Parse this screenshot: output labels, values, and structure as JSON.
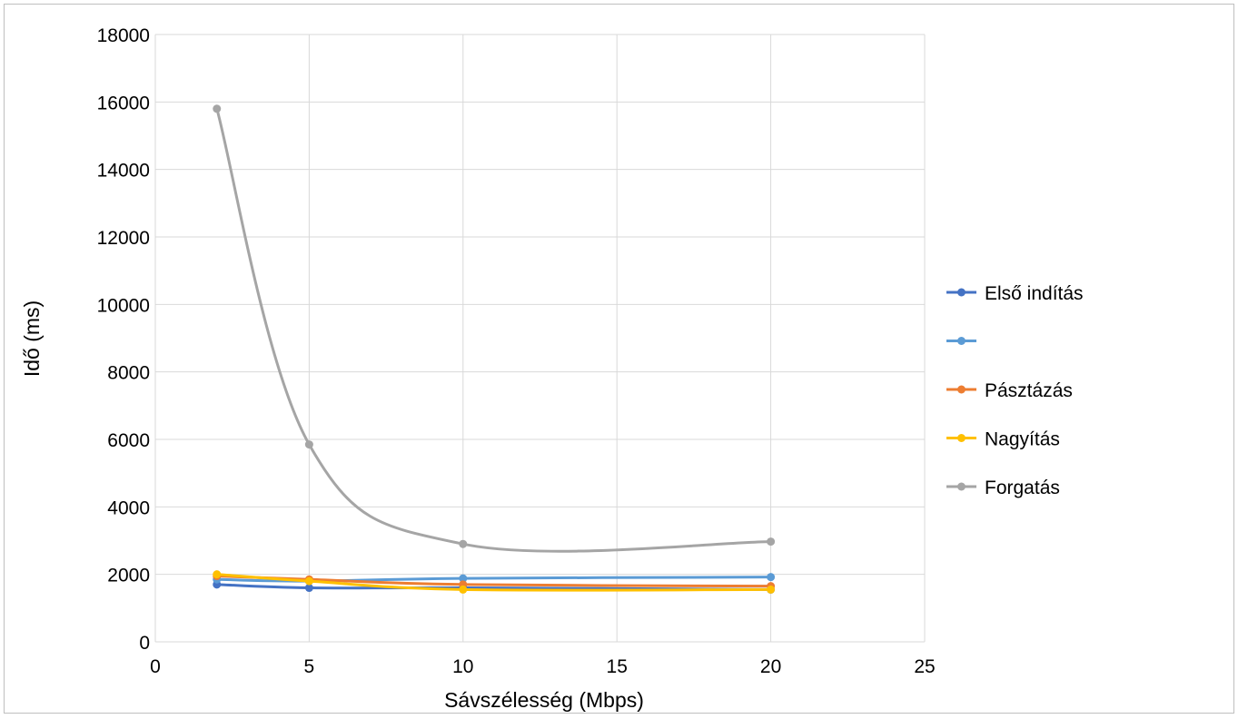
{
  "chart_data": {
    "type": "line",
    "title": "",
    "xlabel": "Sávszélesség (Mbps)",
    "ylabel": "Idő (ms)",
    "xlim": [
      0,
      25
    ],
    "ylim": [
      0,
      18000
    ],
    "x_ticks": [
      0,
      5,
      10,
      15,
      20,
      25
    ],
    "y_ticks": [
      0,
      2000,
      4000,
      6000,
      8000,
      10000,
      12000,
      14000,
      16000,
      18000
    ],
    "x_tick_labels": [
      "0",
      "5",
      "10",
      "15",
      "20",
      "25"
    ],
    "y_tick_labels": [
      "0",
      "2000",
      "4000",
      "6000",
      "8000",
      "10000",
      "12000",
      "14000",
      "16000",
      "18000"
    ],
    "grid": true,
    "smooth": true,
    "legend_position": "right",
    "series": [
      {
        "name": "Első indítás",
        "color": "#4472c4",
        "x": [
          2,
          5,
          10,
          20
        ],
        "y": [
          1700,
          1600,
          1600,
          1550
        ]
      },
      {
        "name": "",
        "color": "#5b9bd5",
        "x": [
          2,
          5,
          10,
          20
        ],
        "y": [
          1850,
          1800,
          1880,
          1920
        ]
      },
      {
        "name": "Pásztázás",
        "color": "#ed7d31",
        "x": [
          2,
          5,
          10,
          20
        ],
        "y": [
          1950,
          1850,
          1700,
          1650
        ]
      },
      {
        "name": "Nagyítás",
        "color": "#ffc000",
        "x": [
          2,
          5,
          10,
          20
        ],
        "y": [
          2000,
          1800,
          1550,
          1550
        ]
      },
      {
        "name": "Forgatás",
        "color": "#a5a5a5",
        "x": [
          2,
          5,
          10,
          20
        ],
        "y": [
          15800,
          5850,
          2900,
          2970
        ]
      }
    ]
  }
}
